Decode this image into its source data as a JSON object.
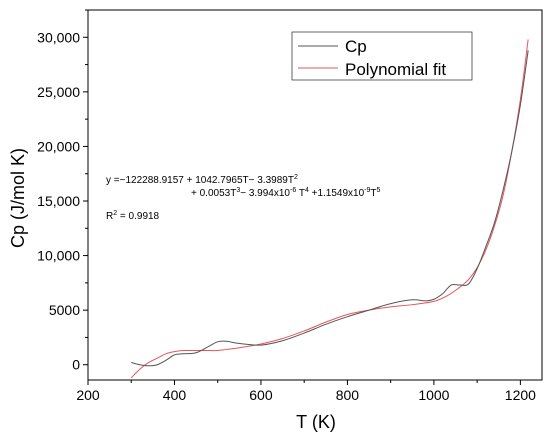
{
  "chart_data": {
    "type": "line",
    "xlabel": "T (K)",
    "ylabel": "Cp (J/mol K)",
    "xlim": [
      200,
      1250
    ],
    "ylim": [
      -1400,
      32500
    ],
    "x_ticks": [
      "200",
      "400",
      "600",
      "800",
      "1000",
      "1200"
    ],
    "x_tick_values": [
      200,
      400,
      600,
      800,
      1000,
      1200
    ],
    "y_ticks": [
      "0",
      "5000",
      "10,000",
      "15,000",
      "20,000",
      "25,000",
      "30,000"
    ],
    "y_tick_values": [
      0,
      5000,
      10000,
      15000,
      20000,
      25000,
      30000
    ],
    "legend_position": "top-right",
    "series": [
      {
        "name": "Cp",
        "color": "#555555",
        "x": [
          300,
          320,
          340,
          360,
          380,
          400,
          420,
          450,
          480,
          500,
          520,
          540,
          560,
          600,
          650,
          700,
          750,
          800,
          850,
          900,
          950,
          980,
          1000,
          1020,
          1040,
          1060,
          1080,
          1100,
          1120,
          1140,
          1160,
          1180,
          1200,
          1218
        ],
        "y": [
          200,
          0,
          -100,
          0,
          400,
          900,
          1000,
          1100,
          1700,
          2100,
          2150,
          2000,
          1900,
          1800,
          2200,
          2900,
          3700,
          4400,
          5000,
          5600,
          5950,
          5850,
          6000,
          6500,
          7300,
          7300,
          7400,
          8800,
          10800,
          13000,
          16000,
          19500,
          23800,
          28800
        ]
      },
      {
        "name": "Polynomial fit",
        "color": "#e8545a",
        "x": [
          300,
          320,
          340,
          360,
          380,
          400,
          420,
          450,
          480,
          500,
          520,
          550,
          600,
          650,
          700,
          750,
          800,
          850,
          900,
          950,
          1000,
          1030,
          1060,
          1080,
          1100,
          1120,
          1140,
          1160,
          1180,
          1200,
          1218
        ],
        "y": [
          -1200,
          -400,
          200,
          600,
          1000,
          1200,
          1300,
          1300,
          1300,
          1300,
          1400,
          1550,
          1900,
          2400,
          3100,
          3900,
          4600,
          5000,
          5300,
          5500,
          5800,
          6300,
          7100,
          7800,
          8900,
          10500,
          12700,
          15500,
          19500,
          24300,
          29800
        ]
      }
    ],
    "annotations": {
      "eq_line1": "y =−122288.9157 + 1042.7965T− 3.3989T",
      "eq_line1_sup": "2",
      "eq_line2_a": "+ 0.0053T",
      "eq_line2_sup1": "3",
      "eq_line2_b": "− 3.994x10",
      "eq_line2_sup2": "-6",
      "eq_line2_c": " T",
      "eq_line2_sup3": "4",
      "eq_line2_d": " +1.1549x10",
      "eq_line2_sup4": "-9",
      "eq_line2_e": "T",
      "eq_line2_sup5": "5",
      "r2_label": "R",
      "r2_sup": "2",
      "r2_value": " = 0.9918"
    }
  }
}
